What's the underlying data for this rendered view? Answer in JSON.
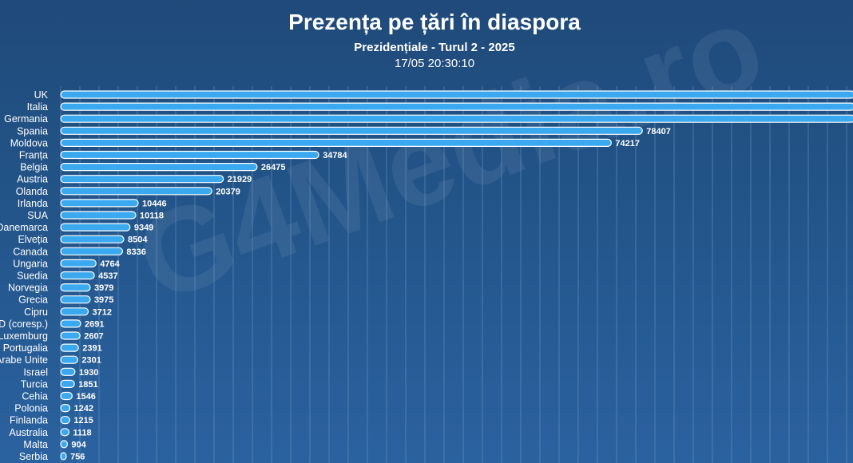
{
  "title": "Prezența pe țări în diaspora",
  "subtitle": "Prezidențiale - Turul 2 - 2025",
  "timestamp": "17/05 20:30:10",
  "watermark": "G4Media.ro",
  "colors": {
    "bar": "#3ba9f0",
    "bar_stroke": "#ffffff",
    "background": "#24578d",
    "grid": "#6f99c5"
  },
  "chart_data": {
    "type": "bar",
    "orientation": "horizontal",
    "categories": [
      "UK",
      "Italia",
      "Germania",
      "Spania",
      "Moldova",
      "Franța",
      "Belgia",
      "Austria",
      "Olanda",
      "Irlanda",
      "SUA",
      "Danemarca",
      "Elveția",
      "Canada",
      "Ungaria",
      "Suedia",
      "Norvegia",
      "Grecia",
      "Cipru",
      "SD (coresp.)",
      "Luxemburg",
      "Portugalia",
      "Emiratele Arabe Unite",
      "Israel",
      "Turcia",
      "Cehia",
      "Polonia",
      "Finlanda",
      "Australia",
      "Malta",
      "Serbia"
    ],
    "values": [
      107000,
      107000,
      107000,
      78407,
      74217,
      34784,
      26475,
      21929,
      20379,
      10446,
      10118,
      9349,
      8504,
      8336,
      4764,
      4537,
      3979,
      3975,
      3712,
      2691,
      2607,
      2391,
      2301,
      1930,
      1851,
      1546,
      1242,
      1215,
      1118,
      904,
      756
    ],
    "labels": [
      null,
      null,
      null,
      "78407",
      "74217",
      "34784",
      "26475",
      "21929",
      "20379",
      "10446",
      "10118",
      "9349",
      "8504",
      "8336",
      "4764",
      "4537",
      "3979",
      "3975",
      "3712",
      "2691",
      "2607",
      "2391",
      "2301",
      "1930",
      "1851",
      "1546",
      "1242",
      "1215",
      "1118",
      "904",
      "756"
    ],
    "xlim": [
      0,
      106800
    ],
    "grid": true,
    "legend": "none"
  }
}
